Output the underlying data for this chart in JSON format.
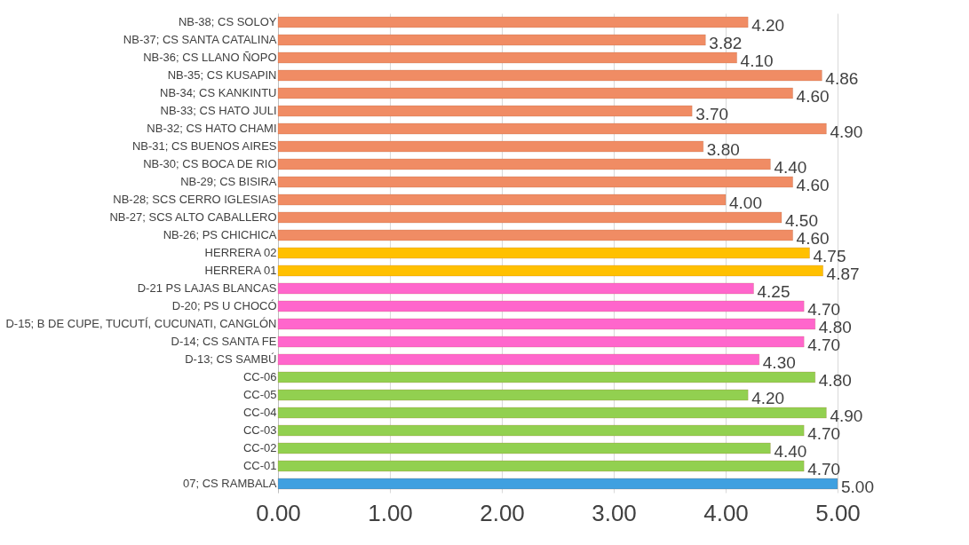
{
  "chart_data": {
    "type": "bar",
    "orientation": "horizontal",
    "categories": [
      "NB-38; CS SOLOY",
      "NB-37; CS SANTA CATALINA",
      "NB-36; CS LLANO ÑOPO",
      "NB-35; CS KUSAPIN",
      "NB-34; CS KANKINTU",
      "NB-33; CS HATO JULI",
      "NB-32; CS HATO CHAMI",
      "NB-31; CS BUENOS AIRES",
      "NB-30; CS BOCA DE RIO",
      "NB-29; CS BISIRA",
      "NB-28; SCS CERRO IGLESIAS",
      "NB-27; SCS ALTO CABALLERO",
      "NB-26; PS CHICHICA",
      "HERRERA 02",
      "HERRERA 01",
      "D-21 PS LAJAS BLANCAS",
      "D-20; PS U CHOCÓ",
      "D-15; B DE CUPE, TUCUTÍ, CUCUNATI, CANGLÓN",
      "D-14; CS SANTA FE",
      "D-13; CS SAMBÚ",
      "CC-06",
      "CC-05",
      "CC-04",
      "CC-03",
      "CC-02",
      "CC-01",
      "07; CS RAMBALA"
    ],
    "values": [
      4.2,
      3.82,
      4.1,
      4.86,
      4.6,
      3.7,
      4.9,
      3.8,
      4.4,
      4.6,
      4.0,
      4.5,
      4.6,
      4.75,
      4.87,
      4.25,
      4.7,
      4.8,
      4.7,
      4.3,
      4.8,
      4.2,
      4.9,
      4.7,
      4.4,
      4.7,
      5.0
    ],
    "value_labels": [
      "4.20",
      "3.82",
      "4.10",
      "4.86",
      "4.60",
      "3.70",
      "4.90",
      "3.80",
      "4.40",
      "4.60",
      "4.00",
      "4.50",
      "4.60",
      "4.75",
      "4.87",
      "4.25",
      "4.70",
      "4.80",
      "4.70",
      "4.30",
      "4.80",
      "4.20",
      "4.90",
      "4.70",
      "4.40",
      "4.70",
      "5.00"
    ],
    "colors": [
      "#f08c64",
      "#f08c64",
      "#f08c64",
      "#f08c64",
      "#f08c64",
      "#f08c64",
      "#f08c64",
      "#f08c64",
      "#f08c64",
      "#f08c64",
      "#f08c64",
      "#f08c64",
      "#f08c64",
      "#ffc000",
      "#ffc000",
      "#ff66cc",
      "#ff66cc",
      "#ff66cc",
      "#ff66cc",
      "#ff66cc",
      "#92d050",
      "#92d050",
      "#92d050",
      "#92d050",
      "#92d050",
      "#92d050",
      "#3fa0e0"
    ],
    "xlim": [
      0,
      5
    ],
    "xticks": [
      {
        "value": 0,
        "label": "0.00"
      },
      {
        "value": 1,
        "label": "1.00"
      },
      {
        "value": 2,
        "label": "2.00"
      },
      {
        "value": 3,
        "label": "3.00"
      },
      {
        "value": 4,
        "label": "4.00"
      },
      {
        "value": 5,
        "label": "5.00"
      }
    ],
    "grid": "x"
  }
}
